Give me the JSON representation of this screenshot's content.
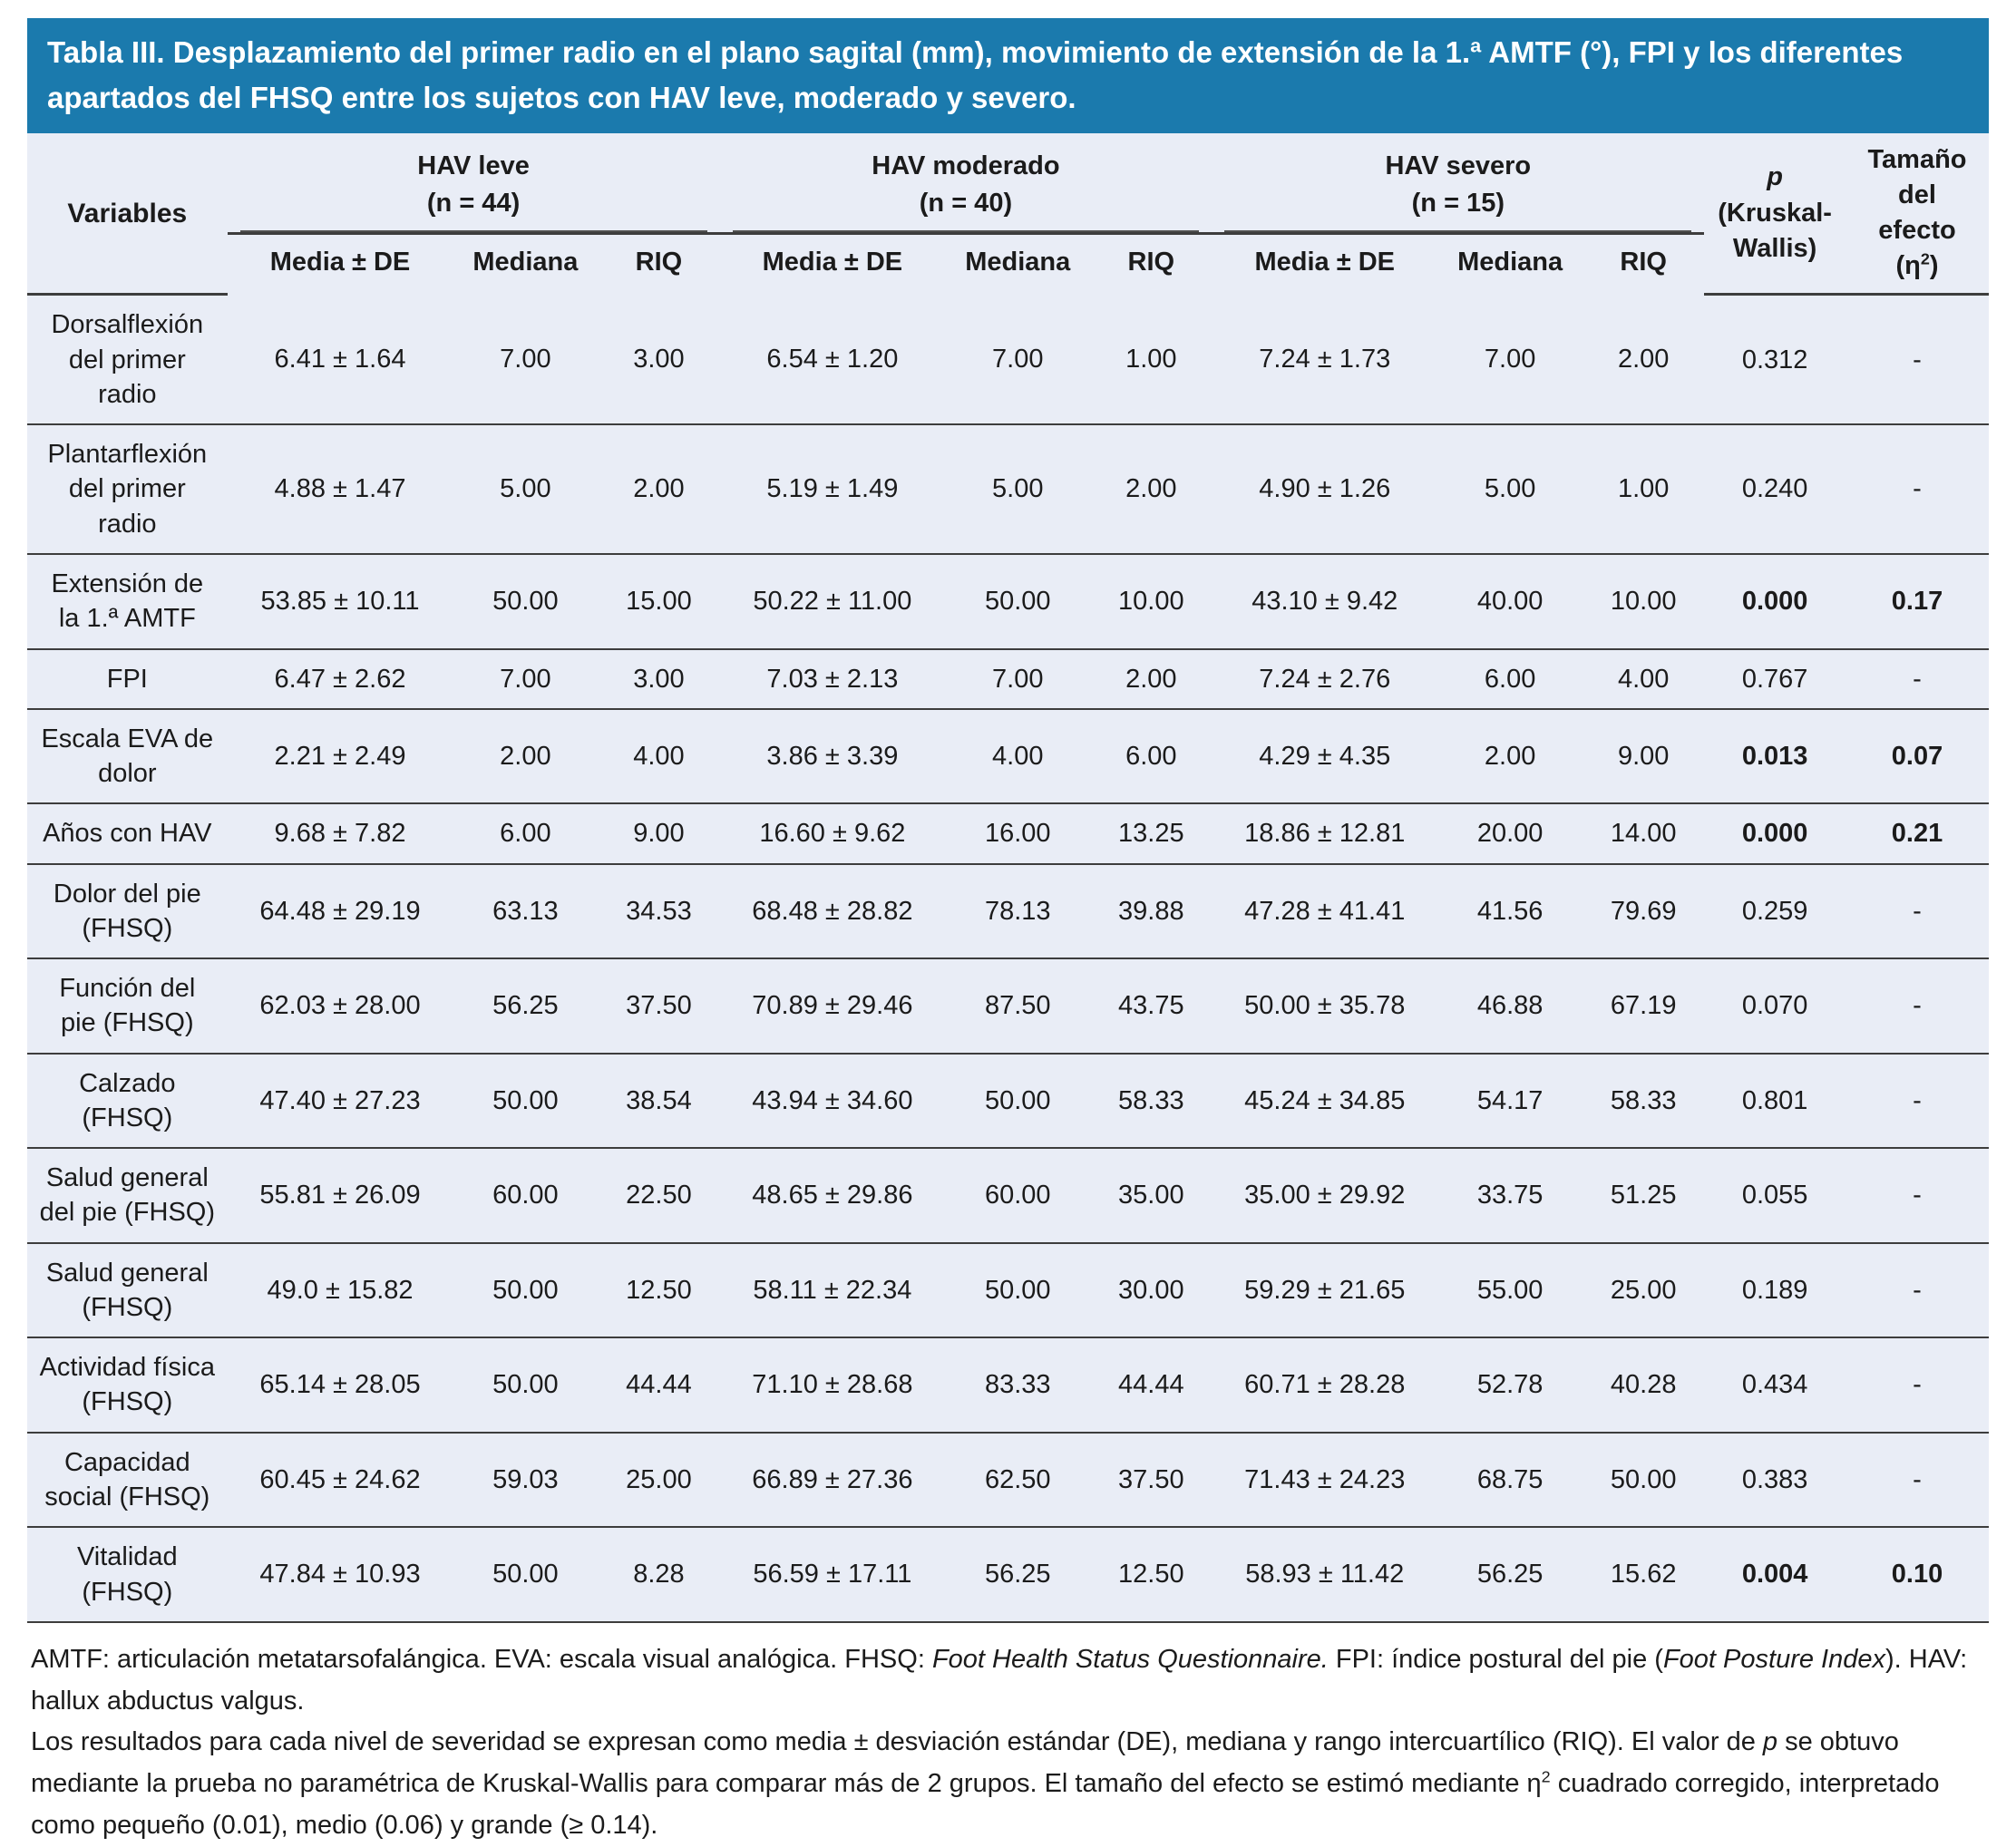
{
  "colors": {
    "title_bg": "#1b7aad",
    "body_bg": "#e9edf6",
    "page_bg": "#ffffff",
    "text": "#1b1b1b",
    "rule": "#3d3d3d"
  },
  "table": {
    "title": "Tabla III. Desplazamiento del primer radio en el plano sagital (mm), movimiento de extensión de la 1.ª AMTF (°), FPI y los diferentes apartados del FHSQ entre los sujetos con HAV leve, moderado y severo.",
    "variables_header": "Variables",
    "groups": [
      {
        "label": "HAV leve",
        "n": "(n = 44)"
      },
      {
        "label": "HAV moderado",
        "n": "(n = 40)"
      },
      {
        "label": "HAV severo",
        "n": "(n = 15)"
      }
    ],
    "subheaders": [
      "Media ± DE",
      "Mediana",
      "RIQ"
    ],
    "p_header": {
      "line1": "p",
      "line2": "(Kruskal-",
      "line3": "Wallis)"
    },
    "effect_header": {
      "line1": "Tamaño",
      "line2": "del",
      "line3": "efecto",
      "line4_pre": "(η",
      "line4_sup": "2",
      "line4_post": ")"
    },
    "rows": [
      {
        "label": "Dorsalflexión del primer radio",
        "cells": [
          "6.41 ± 1.64",
          "7.00",
          "3.00",
          "6.54 ± 1.20",
          "7.00",
          "1.00",
          "7.24 ± 1.73",
          "7.00",
          "2.00"
        ],
        "p": "0.312",
        "effect": "-",
        "significant": false
      },
      {
        "label": "Plantarflexión del primer radio",
        "cells": [
          "4.88 ± 1.47",
          "5.00",
          "2.00",
          "5.19 ± 1.49",
          "5.00",
          "2.00",
          "4.90 ± 1.26",
          "5.00",
          "1.00"
        ],
        "p": "0.240",
        "effect": "-",
        "significant": false
      },
      {
        "label": "Extensión de la 1.ª AMTF",
        "cells": [
          "53.85 ± 10.11",
          "50.00",
          "15.00",
          "50.22 ± 11.00",
          "50.00",
          "10.00",
          "43.10 ± 9.42",
          "40.00",
          "10.00"
        ],
        "p": "0.000",
        "effect": "0.17",
        "significant": true
      },
      {
        "label": "FPI",
        "cells": [
          "6.47 ± 2.62",
          "7.00",
          "3.00",
          "7.03 ± 2.13",
          "7.00",
          "2.00",
          "7.24 ± 2.76",
          "6.00",
          "4.00"
        ],
        "p": "0.767",
        "effect": "-",
        "significant": false
      },
      {
        "label": "Escala EVA de dolor",
        "cells": [
          "2.21 ± 2.49",
          "2.00",
          "4.00",
          "3.86 ± 3.39",
          "4.00",
          "6.00",
          "4.29 ± 4.35",
          "2.00",
          "9.00"
        ],
        "p": "0.013",
        "effect": "0.07",
        "significant": true
      },
      {
        "label": "Años con HAV",
        "cells": [
          "9.68 ± 7.82",
          "6.00",
          "9.00",
          "16.60 ± 9.62",
          "16.00",
          "13.25",
          "18.86 ± 12.81",
          "20.00",
          "14.00"
        ],
        "p": "0.000",
        "effect": "0.21",
        "significant": true
      },
      {
        "label": "Dolor del pie (FHSQ)",
        "cells": [
          "64.48 ± 29.19",
          "63.13",
          "34.53",
          "68.48 ± 28.82",
          "78.13",
          "39.88",
          "47.28 ± 41.41",
          "41.56",
          "79.69"
        ],
        "p": "0.259",
        "effect": "-",
        "significant": false
      },
      {
        "label": "Función del pie (FHSQ)",
        "cells": [
          "62.03 ± 28.00",
          "56.25",
          "37.50",
          "70.89 ± 29.46",
          "87.50",
          "43.75",
          "50.00 ± 35.78",
          "46.88",
          "67.19"
        ],
        "p": "0.070",
        "effect": "-",
        "significant": false
      },
      {
        "label": "Calzado (FHSQ)",
        "cells": [
          "47.40 ± 27.23",
          "50.00",
          "38.54",
          "43.94 ± 34.60",
          "50.00",
          "58.33",
          "45.24 ± 34.85",
          "54.17",
          "58.33"
        ],
        "p": "0.801",
        "effect": "-",
        "significant": false
      },
      {
        "label": "Salud general del pie (FHSQ)",
        "cells": [
          "55.81 ± 26.09",
          "60.00",
          "22.50",
          "48.65 ± 29.86",
          "60.00",
          "35.00",
          "35.00 ± 29.92",
          "33.75",
          "51.25"
        ],
        "p": "0.055",
        "effect": "-",
        "significant": false
      },
      {
        "label": "Salud general (FHSQ)",
        "cells": [
          "49.0 ± 15.82",
          "50.00",
          "12.50",
          "58.11 ± 22.34",
          "50.00",
          "30.00",
          "59.29 ± 21.65",
          "55.00",
          "25.00"
        ],
        "p": "0.189",
        "effect": "-",
        "significant": false
      },
      {
        "label": "Actividad física (FHSQ)",
        "cells": [
          "65.14 ± 28.05",
          "50.00",
          "44.44",
          "71.10 ± 28.68",
          "83.33",
          "44.44",
          "60.71 ± 28.28",
          "52.78",
          "40.28"
        ],
        "p": "0.434",
        "effect": "-",
        "significant": false
      },
      {
        "label": "Capacidad social (FHSQ)",
        "cells": [
          "60.45 ± 24.62",
          "59.03",
          "25.00",
          "66.89 ± 27.36",
          "62.50",
          "37.50",
          "71.43 ± 24.23",
          "68.75",
          "50.00"
        ],
        "p": "0.383",
        "effect": "-",
        "significant": false
      },
      {
        "label": "Vitalidad (FHSQ)",
        "cells": [
          "47.84 ± 10.93",
          "50.00",
          "8.28",
          "56.59 ± 17.11",
          "56.25",
          "12.50",
          "58.93 ± 11.42",
          "56.25",
          "15.62"
        ],
        "p": "0.004",
        "effect": "0.10",
        "significant": true
      }
    ]
  },
  "footnotes": {
    "abbreviations": [
      {
        "text": "AMTF: articulación metatarsofalángica. EVA: escala visual analógica. FHSQ: "
      },
      {
        "text": "Foot Health Status Questionnaire.",
        "italic": true
      },
      {
        "text": " FPI: índice postural del pie ("
      },
      {
        "text": "Foot Posture Index",
        "italic": true
      },
      {
        "text": "). HAV: hallux abductus valgus."
      }
    ],
    "methods": [
      {
        "text": "Los resultados para cada nivel de severidad se expresan como media ± desviación estándar (DE), mediana y rango intercuartílico (RIQ). El valor de "
      },
      {
        "text": "p",
        "italic": true
      },
      {
        "text": " se obtuvo mediante la prueba no paramétrica de Kruskal-Wallis para comparar más de 2 grupos. El tamaño del efecto se estimó mediante η"
      },
      {
        "text": "2",
        "sup": true
      },
      {
        "text": " cuadrado corregido, interpretado como pequeño (0.01), medio (0.06) y grande (≥ 0.14)."
      }
    ]
  }
}
